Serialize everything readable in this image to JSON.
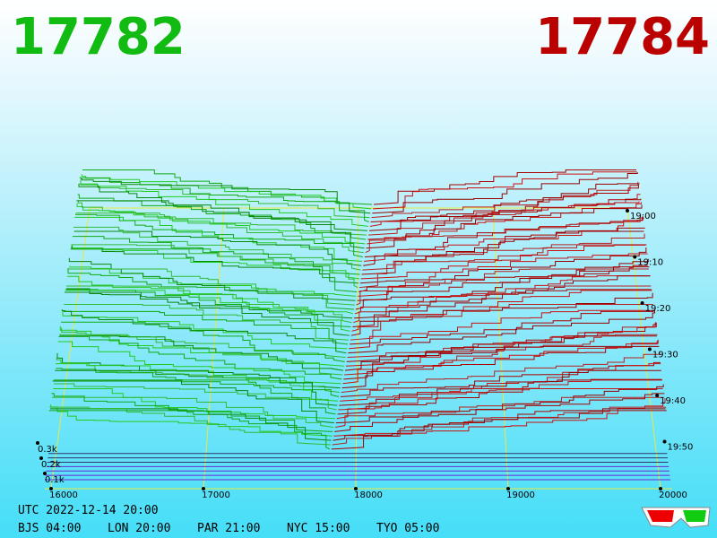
{
  "header": {
    "bid": "17782",
    "ask": "17784"
  },
  "price_axis": {
    "labels": [
      "16000",
      "17000",
      "18000",
      "19000",
      "20000"
    ]
  },
  "time_axis": {
    "labels": [
      "19:00",
      "19:10",
      "19:20",
      "19:30",
      "19:40",
      "19:50"
    ]
  },
  "depth_axis": {
    "labels": [
      "0.3k",
      "0.2k",
      "0.1k"
    ]
  },
  "footer": {
    "utc": "UTC 2022-12-14 20:00",
    "cities": [
      "BJS 04:00",
      "LON 20:00",
      "PAR 21:00",
      "NYC 15:00",
      "TYO 05:00"
    ]
  }
}
